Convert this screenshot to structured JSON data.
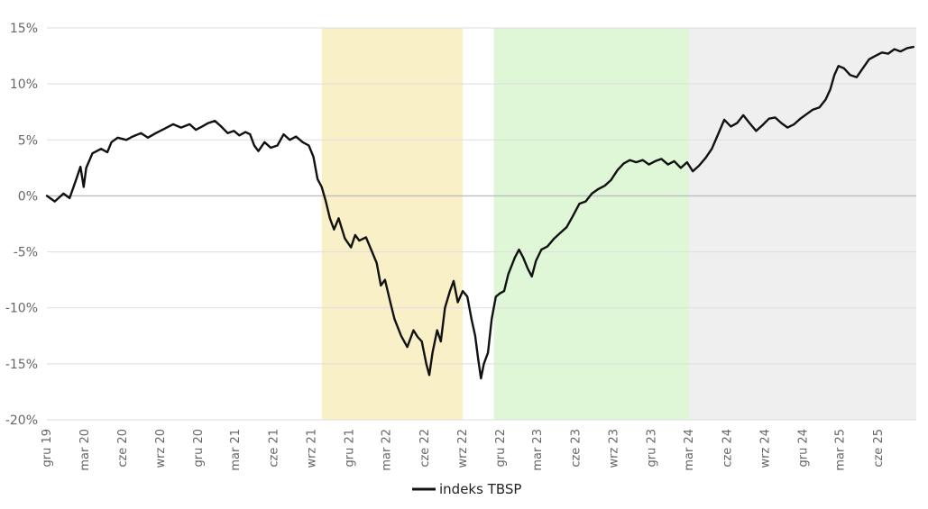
{
  "chart_data": {
    "type": "line",
    "title": "",
    "xlabel": "",
    "ylabel": "",
    "ylim": [
      -20,
      15
    ],
    "y_ticks": [
      15,
      10,
      5,
      0,
      -5,
      -10,
      -15,
      -20
    ],
    "y_tick_labels": [
      "15%",
      "10%",
      "5%",
      "0%",
      "-5%",
      "-10%",
      "-15%",
      "-20%"
    ],
    "x_range": [
      "2019-12-01",
      "2025-09-01"
    ],
    "x_ticks": [
      "2019-12",
      "2020-03",
      "2020-06",
      "2020-09",
      "2020-12",
      "2021-03",
      "2021-06",
      "2021-09",
      "2021-12",
      "2022-03",
      "2022-06",
      "2022-09",
      "2022-12",
      "2023-03",
      "2023-06",
      "2023-09",
      "2023-12",
      "2024-03",
      "2024-06",
      "2024-09",
      "2024-12",
      "2025-03",
      "2025-06"
    ],
    "x_tick_labels": [
      "gru 19",
      "mar 20",
      "cze 20",
      "wrz 20",
      "gru 20",
      "mar 21",
      "cze 21",
      "wrz 21",
      "gru 21",
      "mar 22",
      "cze 22",
      "wrz 22",
      "gru 22",
      "mar 23",
      "cze 23",
      "wrz 23",
      "gru 23",
      "mar 24",
      "cze 24",
      "wrz 24",
      "gru 24",
      "mar 25",
      "cze 25"
    ],
    "grid": true,
    "legend": {
      "position": "bottom-center",
      "entries": [
        "indeks TBSP"
      ]
    },
    "shaded_regions": [
      {
        "start": "2021-09-25",
        "end": "2022-09-01",
        "color": "#faf0c8"
      },
      {
        "start": "2022-11-15",
        "end": "2024-03-01",
        "color": "#dff7d6"
      },
      {
        "start": "2024-03-01",
        "end": "2025-09-01",
        "color": "#efefef"
      }
    ],
    "series": [
      {
        "name": "indeks TBSP",
        "color": "#111111",
        "points": [
          [
            "2019-12-01",
            0.0
          ],
          [
            "2019-12-20",
            -0.5
          ],
          [
            "2020-01-10",
            0.2
          ],
          [
            "2020-01-25",
            -0.2
          ],
          [
            "2020-02-10",
            1.5
          ],
          [
            "2020-02-20",
            2.6
          ],
          [
            "2020-02-28",
            0.8
          ],
          [
            "2020-03-05",
            2.5
          ],
          [
            "2020-03-20",
            3.8
          ],
          [
            "2020-04-10",
            4.2
          ],
          [
            "2020-04-25",
            3.9
          ],
          [
            "2020-05-05",
            4.8
          ],
          [
            "2020-05-20",
            5.2
          ],
          [
            "2020-06-10",
            5.0
          ],
          [
            "2020-06-25",
            5.3
          ],
          [
            "2020-07-15",
            5.6
          ],
          [
            "2020-08-01",
            5.2
          ],
          [
            "2020-08-20",
            5.6
          ],
          [
            "2020-09-10",
            6.0
          ],
          [
            "2020-10-01",
            6.4
          ],
          [
            "2020-10-20",
            6.1
          ],
          [
            "2020-11-10",
            6.4
          ],
          [
            "2020-11-25",
            5.9
          ],
          [
            "2020-12-10",
            6.2
          ],
          [
            "2020-12-25",
            6.5
          ],
          [
            "2021-01-10",
            6.7
          ],
          [
            "2021-01-25",
            6.2
          ],
          [
            "2021-02-10",
            5.6
          ],
          [
            "2021-02-25",
            5.8
          ],
          [
            "2021-03-10",
            5.4
          ],
          [
            "2021-03-25",
            5.7
          ],
          [
            "2021-04-05",
            5.5
          ],
          [
            "2021-04-15",
            4.5
          ],
          [
            "2021-04-25",
            4.0
          ],
          [
            "2021-05-10",
            4.8
          ],
          [
            "2021-05-25",
            4.3
          ],
          [
            "2021-06-10",
            4.5
          ],
          [
            "2021-06-25",
            5.5
          ],
          [
            "2021-07-10",
            5.0
          ],
          [
            "2021-07-25",
            5.3
          ],
          [
            "2021-08-10",
            4.8
          ],
          [
            "2021-08-25",
            4.5
          ],
          [
            "2021-09-05",
            3.5
          ],
          [
            "2021-09-15",
            1.5
          ],
          [
            "2021-09-25",
            0.8
          ],
          [
            "2021-10-05",
            -0.5
          ],
          [
            "2021-10-15",
            -2.0
          ],
          [
            "2021-10-25",
            -3.0
          ],
          [
            "2021-11-05",
            -2.0
          ],
          [
            "2021-11-20",
            -3.8
          ],
          [
            "2021-12-05",
            -4.6
          ],
          [
            "2021-12-15",
            -3.5
          ],
          [
            "2021-12-25",
            -4.0
          ],
          [
            "2022-01-10",
            -3.7
          ],
          [
            "2022-01-25",
            -5.0
          ],
          [
            "2022-02-05",
            -6.0
          ],
          [
            "2022-02-15",
            -8.0
          ],
          [
            "2022-02-25",
            -7.5
          ],
          [
            "2022-03-10",
            -9.5
          ],
          [
            "2022-03-20",
            -11.0
          ],
          [
            "2022-04-05",
            -12.5
          ],
          [
            "2022-04-20",
            -13.5
          ],
          [
            "2022-05-05",
            -12.0
          ],
          [
            "2022-05-15",
            -12.6
          ],
          [
            "2022-05-25",
            -13.0
          ],
          [
            "2022-06-05",
            -15.0
          ],
          [
            "2022-06-12",
            -16.0
          ],
          [
            "2022-06-20",
            -14.0
          ],
          [
            "2022-07-01",
            -12.0
          ],
          [
            "2022-07-10",
            -13.0
          ],
          [
            "2022-07-20",
            -10.0
          ],
          [
            "2022-08-01",
            -8.5
          ],
          [
            "2022-08-10",
            -7.6
          ],
          [
            "2022-08-20",
            -9.5
          ],
          [
            "2022-09-01",
            -8.5
          ],
          [
            "2022-09-12",
            -9.0
          ],
          [
            "2022-09-22",
            -11.0
          ],
          [
            "2022-10-01",
            -12.5
          ],
          [
            "2022-10-08",
            -14.5
          ],
          [
            "2022-10-15",
            -16.3
          ],
          [
            "2022-10-22",
            -15.0
          ],
          [
            "2022-11-01",
            -14.0
          ],
          [
            "2022-11-10",
            -11.0
          ],
          [
            "2022-11-20",
            -9.0
          ],
          [
            "2022-11-30",
            -8.7
          ],
          [
            "2022-12-10",
            -8.5
          ],
          [
            "2022-12-20",
            -7.0
          ],
          [
            "2023-01-05",
            -5.5
          ],
          [
            "2023-01-15",
            -4.8
          ],
          [
            "2023-01-25",
            -5.5
          ],
          [
            "2023-02-05",
            -6.5
          ],
          [
            "2023-02-15",
            -7.2
          ],
          [
            "2023-02-25",
            -5.8
          ],
          [
            "2023-03-10",
            -4.8
          ],
          [
            "2023-03-25",
            -4.5
          ],
          [
            "2023-04-10",
            -3.8
          ],
          [
            "2023-04-25",
            -3.3
          ],
          [
            "2023-05-10",
            -2.8
          ],
          [
            "2023-05-25",
            -1.8
          ],
          [
            "2023-06-10",
            -0.7
          ],
          [
            "2023-06-25",
            -0.5
          ],
          [
            "2023-07-10",
            0.2
          ],
          [
            "2023-07-25",
            0.6
          ],
          [
            "2023-08-10",
            0.9
          ],
          [
            "2023-08-25",
            1.4
          ],
          [
            "2023-09-10",
            2.3
          ],
          [
            "2023-09-25",
            2.9
          ],
          [
            "2023-10-10",
            3.2
          ],
          [
            "2023-10-25",
            3.0
          ],
          [
            "2023-11-10",
            3.2
          ],
          [
            "2023-11-25",
            2.8
          ],
          [
            "2023-12-10",
            3.1
          ],
          [
            "2023-12-25",
            3.3
          ],
          [
            "2024-01-10",
            2.8
          ],
          [
            "2024-01-25",
            3.1
          ],
          [
            "2024-02-10",
            2.5
          ],
          [
            "2024-02-25",
            3.0
          ],
          [
            "2024-03-10",
            2.2
          ],
          [
            "2024-03-25",
            2.7
          ],
          [
            "2024-04-10",
            3.4
          ],
          [
            "2024-04-25",
            4.2
          ],
          [
            "2024-05-10",
            5.5
          ],
          [
            "2024-05-25",
            6.8
          ],
          [
            "2024-06-10",
            6.2
          ],
          [
            "2024-06-25",
            6.5
          ],
          [
            "2024-07-10",
            7.2
          ],
          [
            "2024-07-25",
            6.5
          ],
          [
            "2024-08-10",
            5.8
          ],
          [
            "2024-08-25",
            6.3
          ],
          [
            "2024-09-10",
            6.9
          ],
          [
            "2024-09-25",
            7.0
          ],
          [
            "2024-10-10",
            6.5
          ],
          [
            "2024-10-25",
            6.1
          ],
          [
            "2024-11-10",
            6.4
          ],
          [
            "2024-11-25",
            6.9
          ],
          [
            "2024-12-10",
            7.3
          ],
          [
            "2024-12-25",
            7.7
          ],
          [
            "2025-01-10",
            7.9
          ],
          [
            "2025-01-25",
            8.6
          ],
          [
            "2025-02-05",
            9.5
          ],
          [
            "2025-02-15",
            10.8
          ],
          [
            "2025-02-25",
            11.6
          ],
          [
            "2025-03-10",
            11.4
          ],
          [
            "2025-03-25",
            10.8
          ],
          [
            "2025-04-10",
            10.6
          ],
          [
            "2025-04-25",
            11.4
          ],
          [
            "2025-05-10",
            12.2
          ],
          [
            "2025-05-25",
            12.5
          ],
          [
            "2025-06-10",
            12.8
          ],
          [
            "2025-06-25",
            12.7
          ],
          [
            "2025-07-10",
            13.1
          ],
          [
            "2025-07-25",
            12.9
          ],
          [
            "2025-08-10",
            13.2
          ],
          [
            "2025-08-25",
            13.3
          ]
        ]
      }
    ]
  }
}
